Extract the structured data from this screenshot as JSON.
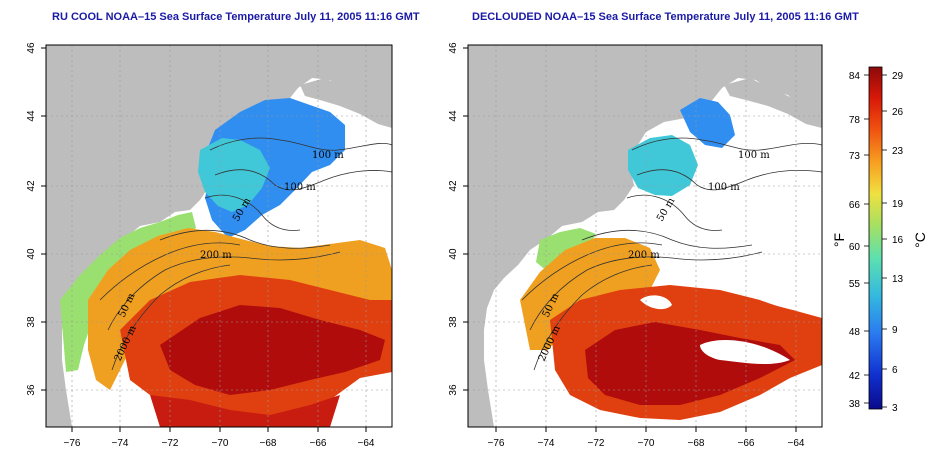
{
  "panels": {
    "left": {
      "title": "RU COOL NOAA–15 Sea Surface Temperature July 11, 2005 11:16 GMT"
    },
    "right": {
      "title": "DECLOUDED NOAA–15 Sea Surface Temperature July 11, 2005 11:16 GMT"
    }
  },
  "axes": {
    "x_ticks": [
      "−76",
      "−74",
      "−72",
      "−70",
      "−68",
      "−66",
      "−64"
    ],
    "y_ticks": [
      "36",
      "38",
      "40",
      "42",
      "44",
      "46"
    ]
  },
  "contour_labels": {
    "left": [
      "100 m",
      "100 m",
      "50 m",
      "200 m",
      "50 m",
      "2000 m"
    ],
    "right": [
      "100 m",
      "100 m",
      "50 m",
      "200 m",
      "50 m",
      "2000 m"
    ]
  },
  "colorbar": {
    "fahrenheit_unit": "°F",
    "celsius_unit": "°C",
    "fahrenheit_ticks": [
      "84",
      "78",
      "73",
      "66",
      "60",
      "55",
      "48",
      "42",
      "38"
    ],
    "celsius_ticks": [
      "29",
      "26",
      "23",
      "19",
      "16",
      "13",
      "9",
      "6",
      "3"
    ],
    "colors": [
      "#0a0a8c",
      "#1030d0",
      "#2a7af0",
      "#33b8e0",
      "#5ce0b0",
      "#a8e060",
      "#f0e040",
      "#f8a020",
      "#f05010",
      "#d81808",
      "#8c0a0a"
    ]
  },
  "map_colors": {
    "land": "#bdbdbd",
    "missing": "#ffffff",
    "cold": "#2f8ef0",
    "cool": "#40c8d8",
    "mild": "#9ae070",
    "warm": "#f0a020",
    "hot": "#e04010",
    "hottest": "#b00c0c"
  }
}
